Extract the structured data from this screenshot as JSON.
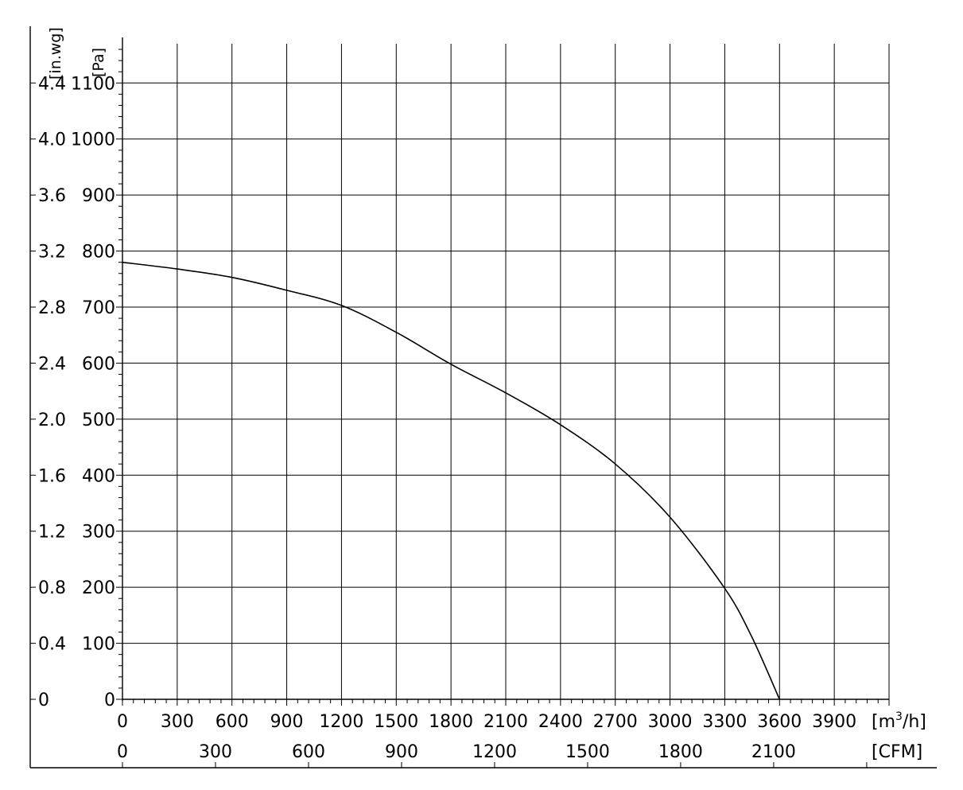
{
  "chart_data": {
    "type": "line",
    "title": "",
    "xlabel": "[m3/h]",
    "xlabel_parts": {
      "base": "[m",
      "sup": "3",
      "tail": "/h]"
    },
    "x2label": "[CFM]",
    "ylabel_pa": "[Pa]",
    "ylabel_inwg": "[in.wg]",
    "xlim": [
      0,
      4200
    ],
    "ylim": [
      0,
      1170
    ],
    "grid": true,
    "x_ticks": [
      "0",
      "300",
      "600",
      "900",
      "1200",
      "1500",
      "1800",
      "2100",
      "2400",
      "2700",
      "3000",
      "3300",
      "3600",
      "3900"
    ],
    "x_tick_values": [
      0,
      300,
      600,
      900,
      1200,
      1500,
      1800,
      2100,
      2400,
      2700,
      3000,
      3300,
      3600,
      3900
    ],
    "cfm_ticks": [
      "0",
      "300",
      "600",
      "900",
      "1200",
      "1500",
      "1800",
      "2100"
    ],
    "cfm_tick_values": [
      0,
      300,
      600,
      900,
      1200,
      1500,
      1800,
      2100
    ],
    "pa_ticks": [
      "0",
      "100",
      "200",
      "300",
      "400",
      "500",
      "600",
      "700",
      "800",
      "900",
      "1000",
      "1100"
    ],
    "pa_tick_values": [
      0,
      100,
      200,
      300,
      400,
      500,
      600,
      700,
      800,
      900,
      1000,
      1100
    ],
    "inwg_ticks": [
      "0",
      "0.4",
      "0.8",
      "1.2",
      "1.6",
      "2.0",
      "2.4",
      "2.8",
      "3.2",
      "3.6",
      "4.0",
      "4.4"
    ],
    "series": [
      {
        "x": [
          0,
          300,
          600,
          900,
          1200,
          1500,
          1800,
          2100,
          2400,
          2700,
          3000,
          3300,
          3450,
          3600
        ],
        "y": [
          780,
          768,
          753,
          730,
          703,
          655,
          598,
          547,
          490,
          420,
          325,
          198,
          110,
          0
        ]
      }
    ],
    "line_color": "#000000",
    "grid_color": "#000000"
  }
}
